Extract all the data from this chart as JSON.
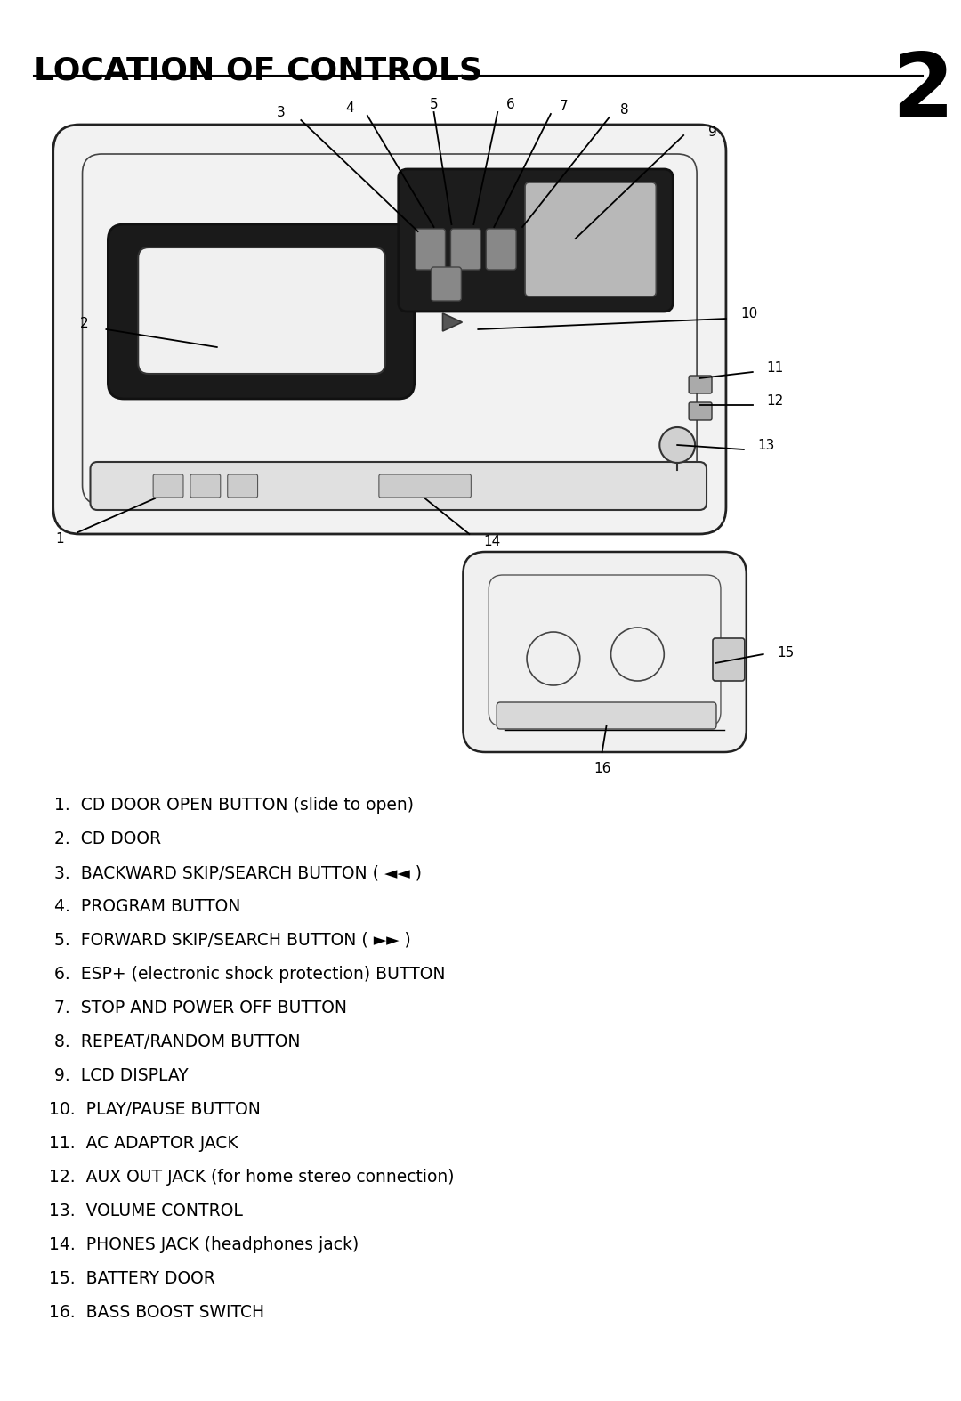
{
  "title": "LOCATION OF CONTROLS",
  "page_number": "2",
  "background_color": "#ffffff",
  "text_color": "#000000",
  "title_fontsize": 26,
  "page_num_fontsize": 72,
  "items_clean": [
    " 1.  CD DOOR OPEN BUTTON (slide to open)",
    " 2.  CD DOOR",
    " 3.  BACKWARD SKIP/SEARCH BUTTON ( ◄◄ )",
    " 4.  PROGRAM BUTTON",
    " 5.  FORWARD SKIP/SEARCH BUTTON ( ►► )",
    " 6.  ESP+ (electronic shock protection) BUTTON",
    " 7.  STOP AND POWER OFF BUTTON",
    " 8.  REPEAT/RANDOM BUTTON",
    " 9.  LCD DISPLAY",
    "10.  PLAY/PAUSE BUTTON",
    "11.  AC ADAPTOR JACK",
    "12.  AUX OUT JACK (for home stereo connection)",
    "13.  VOLUME CONTROL",
    "14.  PHONES JACK (headphones jack)",
    "15.  BATTERY DOOR",
    "16.  BASS BOOST SWITCH"
  ]
}
